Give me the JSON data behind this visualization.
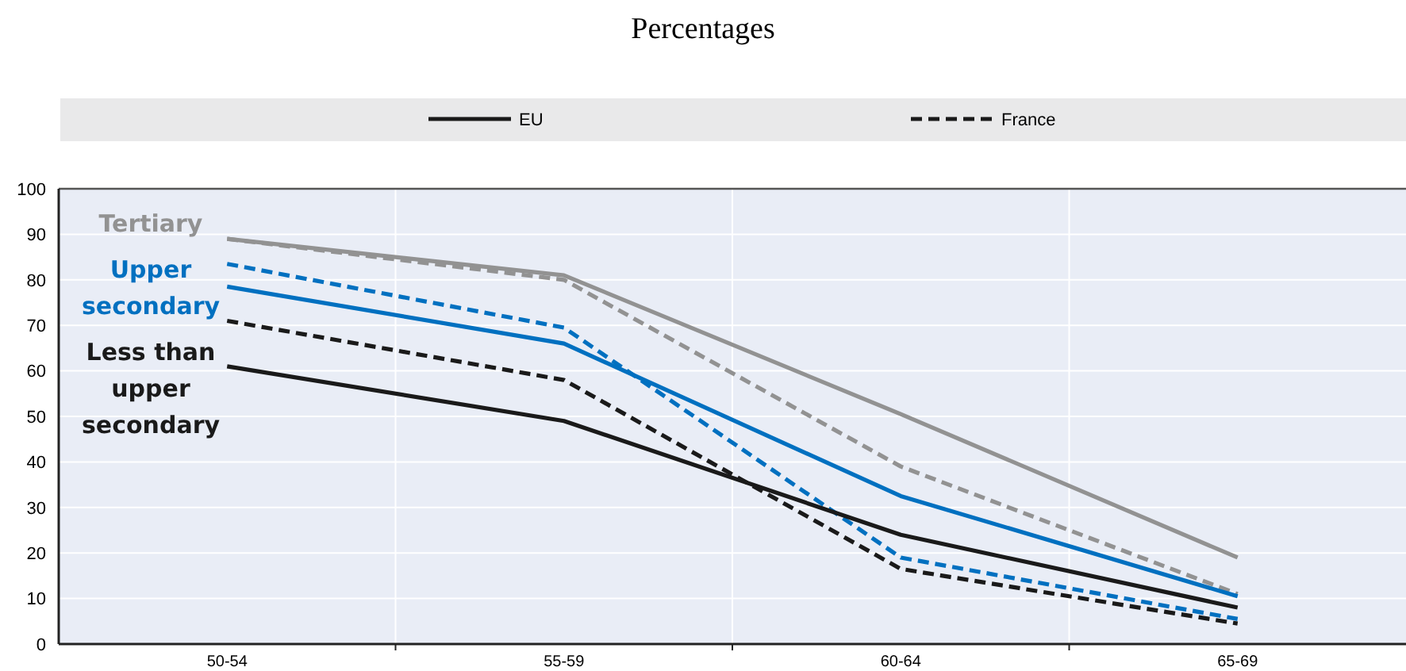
{
  "chart_data": {
    "type": "line",
    "title": "Percentages",
    "categories": [
      "50-54",
      "55-59",
      "60-64",
      "65-69"
    ],
    "series": [
      {
        "color": "#929292",
        "line_style": "solid",
        "values": [
          89,
          81,
          50.5,
          19
        ]
      },
      {
        "color": "#929292",
        "line_style": "dashed",
        "values": [
          89,
          80,
          39,
          11
        ]
      },
      {
        "color": "#0070c0",
        "line_style": "solid",
        "values": [
          78.5,
          66,
          32.5,
          10.5
        ]
      },
      {
        "color": "#0070c0",
        "line_style": "dashed",
        "values": [
          83.5,
          69.5,
          19,
          5.5
        ]
      },
      {
        "name": "EU",
        "color": "#1a1a1a",
        "line_style": "solid",
        "values": [
          61,
          49,
          24,
          8
        ]
      },
      {
        "name": "France",
        "color": "#1a1a1a",
        "line_style": "dashed",
        "values": [
          71,
          58,
          16.5,
          4.5
        ]
      }
    ],
    "annotations": [
      "Tertiary",
      "Upper secondary",
      "Less than upper secondary"
    ],
    "ylim": [
      0,
      100
    ],
    "yticks": [
      0,
      10,
      20,
      30,
      40,
      50,
      60,
      70,
      80,
      90,
      100
    ],
    "grid": true,
    "legend": "top",
    "marker": "none"
  }
}
